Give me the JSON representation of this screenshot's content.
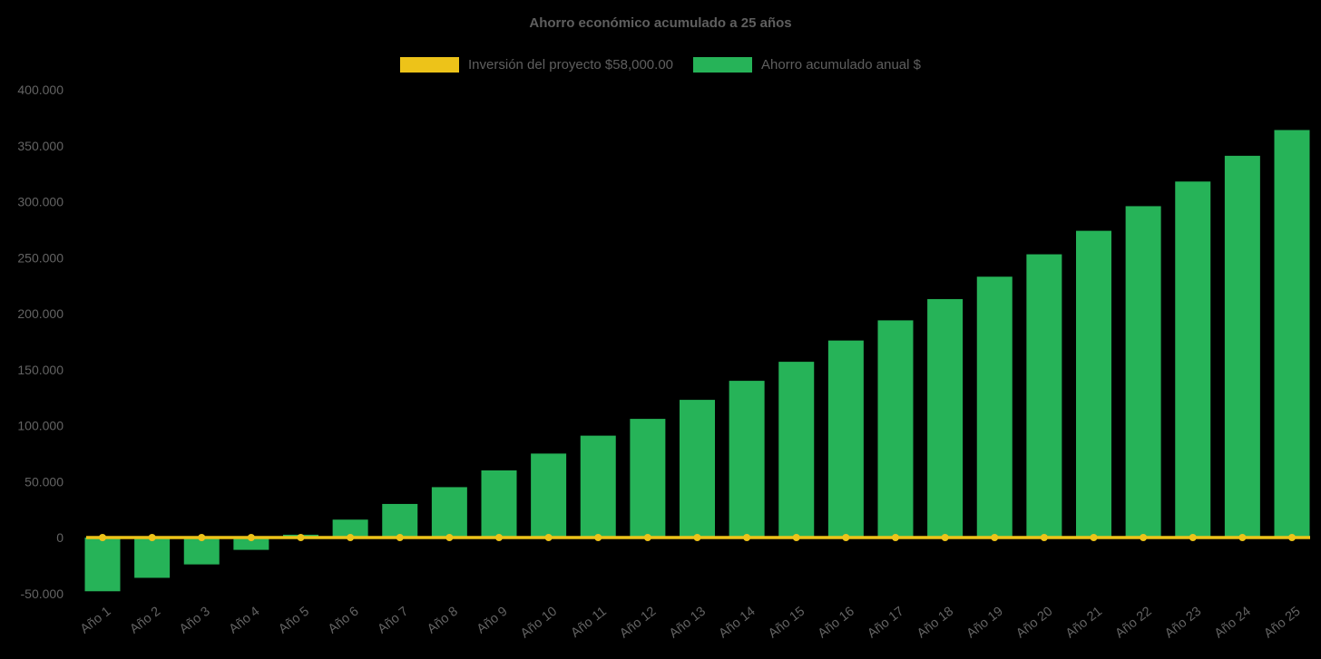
{
  "title": "Ahorro económico acumulado a 25 años",
  "chart_data": {
    "type": "bar",
    "title": "Ahorro económico acumulado a 25 años",
    "categories": [
      "Año 1",
      "Año 2",
      "Año 3",
      "Año 4",
      "Año 5",
      "Año 6",
      "Año 7",
      "Año 8",
      "Año 9",
      "Año 10",
      "Año 11",
      "Año 12",
      "Año 13",
      "Año 14",
      "Año 15",
      "Año 16",
      "Año 17",
      "Año 18",
      "Año 19",
      "Año 20",
      "Año 21",
      "Año 22",
      "Año 23",
      "Año 24",
      "Año 25"
    ],
    "series": [
      {
        "name": "Inversión del proyecto $58,000.00",
        "type": "line",
        "color": "#EDC319",
        "values": [
          0,
          0,
          0,
          0,
          0,
          0,
          0,
          0,
          0,
          0,
          0,
          0,
          0,
          0,
          0,
          0,
          0,
          0,
          0,
          0,
          0,
          0,
          0,
          0,
          0
        ]
      },
      {
        "name": "Ahorro acumulado anual $",
        "type": "bar",
        "color": "#26B358",
        "values": [
          -48000,
          -36000,
          -24000,
          -11000,
          2500,
          16000,
          30000,
          45000,
          60000,
          75000,
          91000,
          106000,
          123000,
          140000,
          157000,
          176000,
          194000,
          213000,
          233000,
          253000,
          274000,
          296000,
          318000,
          341000,
          364000
        ]
      }
    ],
    "ylim": [
      -50000,
      400000
    ],
    "ytick_step": 50000,
    "ytick_labels": [
      "-50.000",
      "0",
      "50.000",
      "100.000",
      "150.000",
      "200.000",
      "250.000",
      "300.000",
      "350.000",
      "400.000"
    ],
    "grid": false,
    "legend_position": "top",
    "background_color": "#000000",
    "text_color": "#636363"
  }
}
